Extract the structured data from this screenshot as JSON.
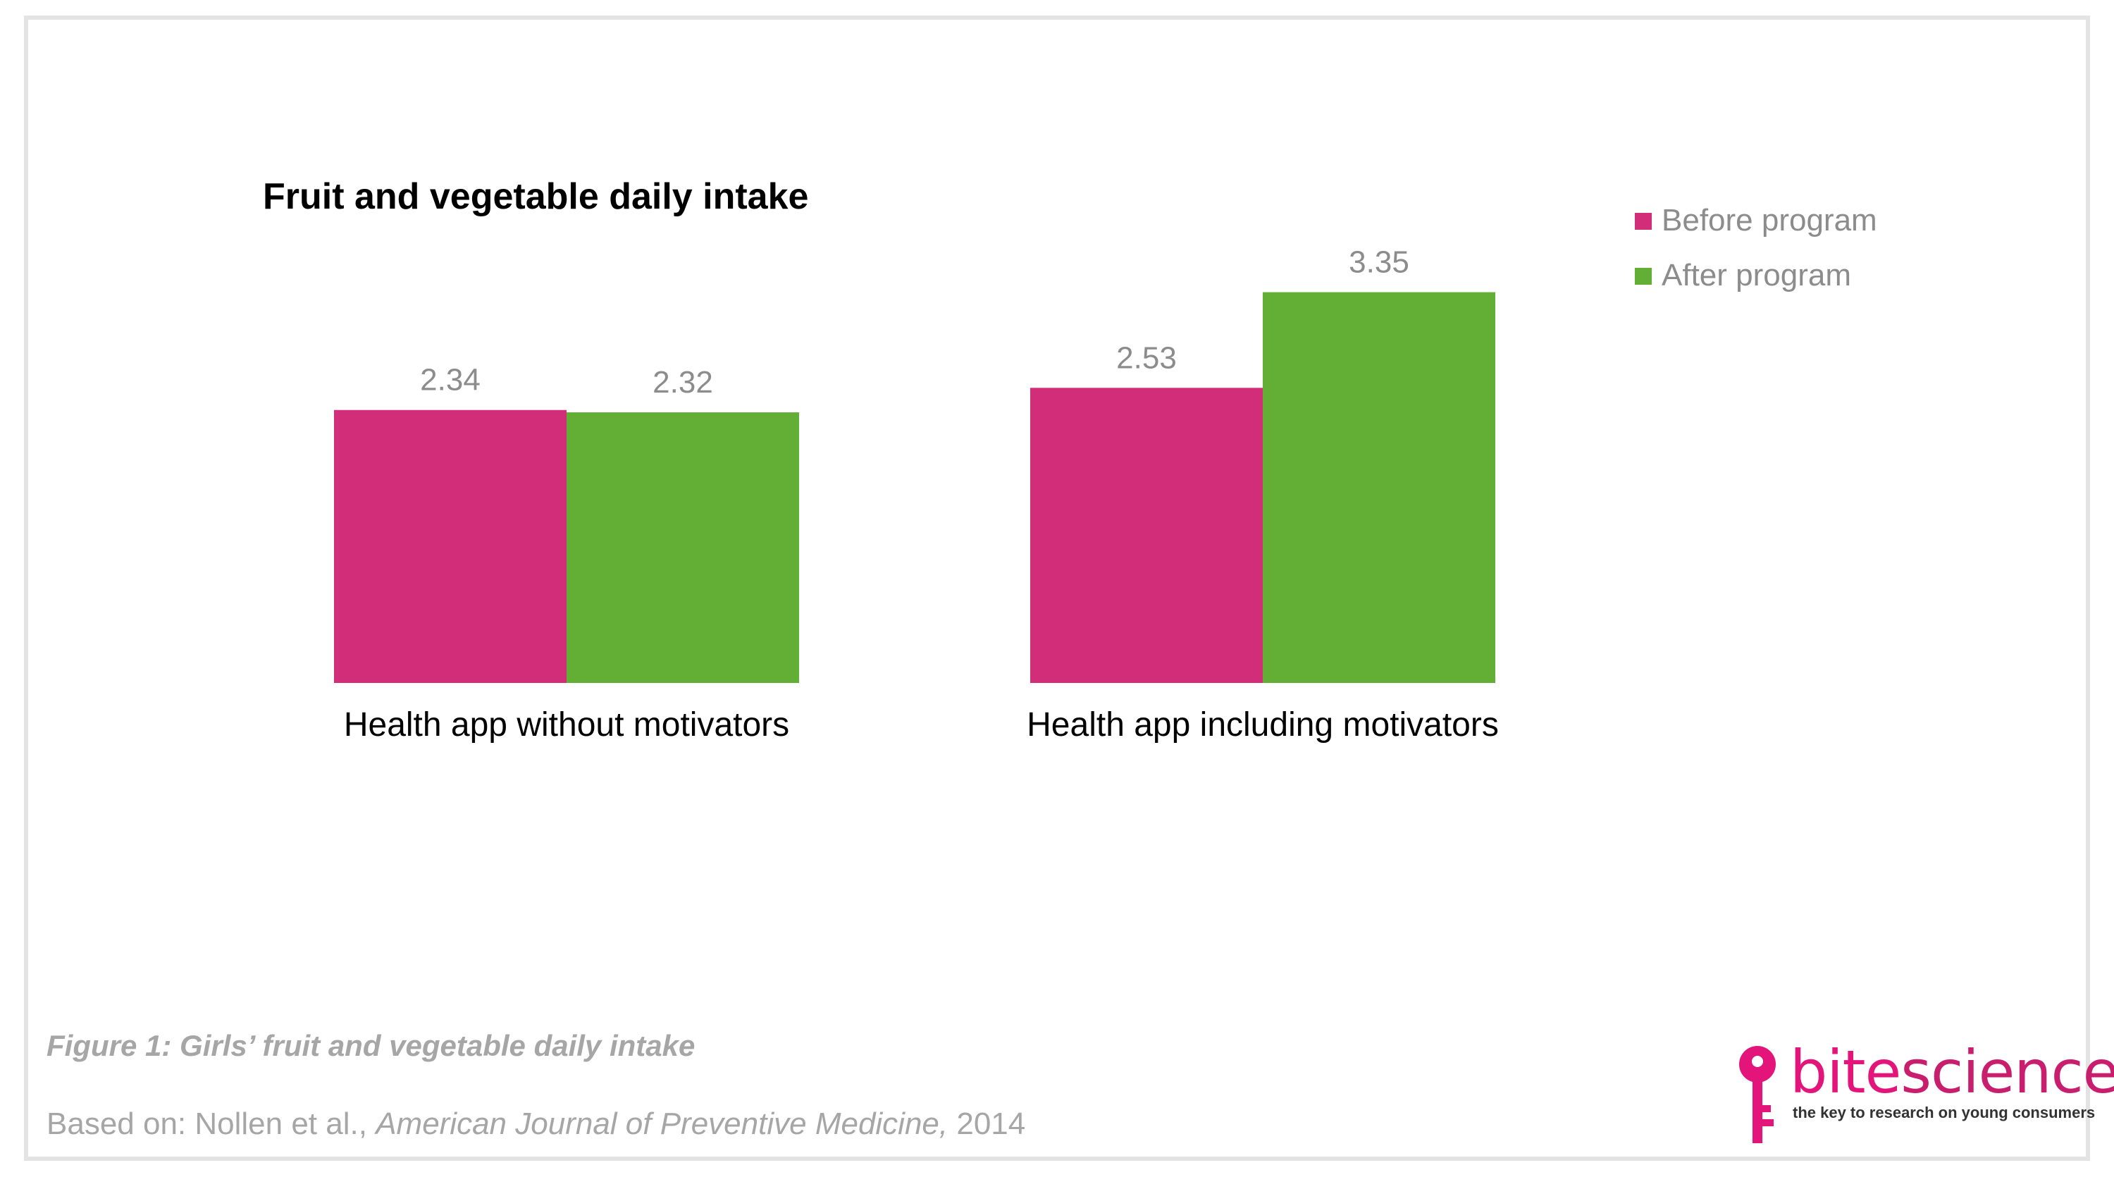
{
  "chart_data": {
    "type": "bar",
    "title": "Fruit and vegetable daily intake",
    "categories": [
      "Health app without motivators",
      "Health app including motivators"
    ],
    "series": [
      {
        "name": "Before program",
        "values": [
          2.34,
          2.53
        ],
        "labels": [
          "2.34",
          "2.53"
        ],
        "color": "#d22d78"
      },
      {
        "name": "After program",
        "values": [
          2.32,
          3.35
        ],
        "labels": [
          "2.32",
          "3.35"
        ],
        "color": "#63af35"
      }
    ],
    "ylim": [
      0,
      3.5
    ],
    "grid": false,
    "legend": "top-right"
  },
  "caption": "Figure 1: Girls’ fruit and vegetable daily intake",
  "source": {
    "prefix": "Based on: Nollen et al., ",
    "journal": "American Journal of Preventive Medicine,",
    "year": " 2014"
  },
  "logo": {
    "bite": "bite",
    "science": "science",
    "tagline": "the key to research on young consumers",
    "color": "#e4157a"
  }
}
